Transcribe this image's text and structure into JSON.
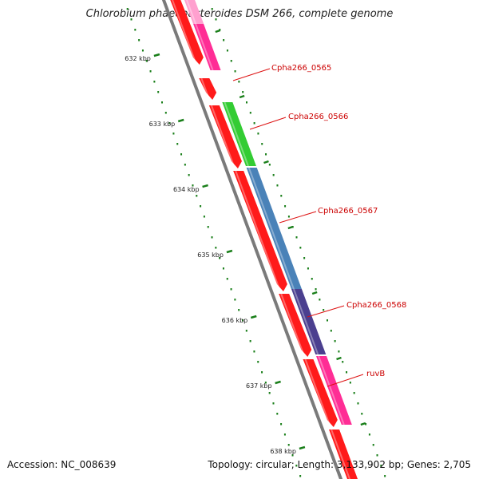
{
  "map": {
    "title": "Chlorobium phaeobacteroides DSM 266, complete genome",
    "accession": "Accession: NC_008639",
    "genome_info": "Topology: circular; Length: 3,133,902 bp; Genes: 2,705"
  },
  "ruler": {
    "labels": [
      "632 kbp",
      "633 kbp",
      "634 kbp",
      "635 kbp",
      "636 kbp",
      "637 kbp",
      "638 kbp"
    ]
  },
  "genes": [
    {
      "label": "Cpha266_0565",
      "color": "#ff2d95"
    },
    {
      "label": "Cpha266_0566",
      "color": "#33cc33"
    },
    {
      "label": "Cpha266_0567",
      "color": "#4a82b8"
    },
    {
      "label": "Cpha266_0568",
      "color": "#4b3f8f"
    },
    {
      "label": "ruvB",
      "color": "#ff2d95"
    }
  ],
  "colors": {
    "cds": "#ff1a1a",
    "backbone": "#7a7a7a",
    "ruler_tick": "#1a7f1a",
    "label": "#cc0000",
    "callout": "#dd1111",
    "gc_dots": "#1a7f1a"
  }
}
